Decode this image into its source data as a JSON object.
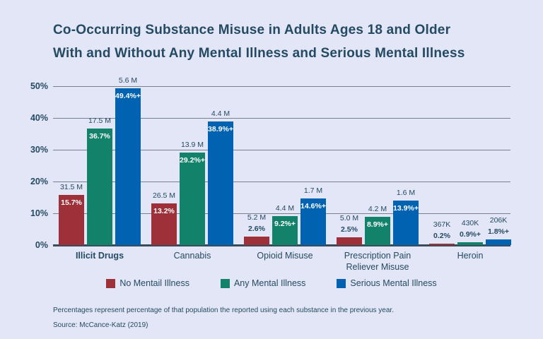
{
  "title": {
    "line1": "Co-Occurring Substance Misuse in Adults Ages 18 and Older",
    "line2": "With and Without Any Mental Illness and Serious Mental Illness"
  },
  "chart_data": {
    "type": "bar",
    "title": "Co-Occurring Substance Misuse in Adults Ages 18 and Older With and Without Any Mental Illness and Serious Mental Illness",
    "categories": [
      "Illicit Drugs",
      "Cannabis",
      "Opioid Misuse",
      "Prescription Pain\nReliever Misuse",
      "Heroin"
    ],
    "category_bold": [
      true,
      false,
      false,
      false,
      false
    ],
    "series": [
      {
        "name": "No Mentail Illness",
        "color": "#9e3039",
        "values": [
          15.7,
          13.2,
          2.6,
          2.5,
          0.2
        ],
        "pct_labels": [
          "15.7%",
          "13.2%",
          "2.6%",
          "2.5%",
          "0.2%"
        ],
        "pop_labels": [
          "31.5 M",
          "26.5 M",
          "5.2 M",
          "5.0 M",
          "367K"
        ]
      },
      {
        "name": "Any Mental Illness",
        "color": "#13826a",
        "values": [
          36.7,
          29.2,
          9.2,
          8.9,
          0.9
        ],
        "pct_labels": [
          "36.7%",
          "29.2%+",
          "9.2%+",
          "8.9%+",
          "0.9%+"
        ],
        "pop_labels": [
          "17.5 M",
          "13.9 M",
          "4.4 M",
          "4.2 M",
          "430K"
        ]
      },
      {
        "name": "Serious Mental Illness",
        "color": "#0062b0",
        "values": [
          49.4,
          38.9,
          14.6,
          13.9,
          1.8
        ],
        "pct_labels": [
          "49.4%+",
          "38.9%+",
          "14.6%+",
          "13.9%+",
          "1.8%+"
        ],
        "pop_labels": [
          "5.6 M",
          "4.4 M",
          "1.7 M",
          "1.6 M",
          "206K"
        ]
      }
    ],
    "xlabel": "",
    "ylabel": "",
    "ylim": [
      0,
      50
    ],
    "yticks": [
      "0%",
      "10%",
      "20%",
      "30%",
      "40%",
      "50%"
    ],
    "grid": true,
    "legend_position": "bottom"
  },
  "footnote": "Percentages represent percentage of that population the reported using each substance in the previous year.",
  "source": "Source: McCance-Katz (2019)",
  "colors": {
    "background": "#e2e6f6",
    "text_navy": "#254a63",
    "gridline": "#76808f",
    "baseline": "#3a4b59",
    "no_mental_illness": "#9e3039",
    "any_mental_illness": "#13826a",
    "serious_mental_illness": "#0062b0"
  }
}
